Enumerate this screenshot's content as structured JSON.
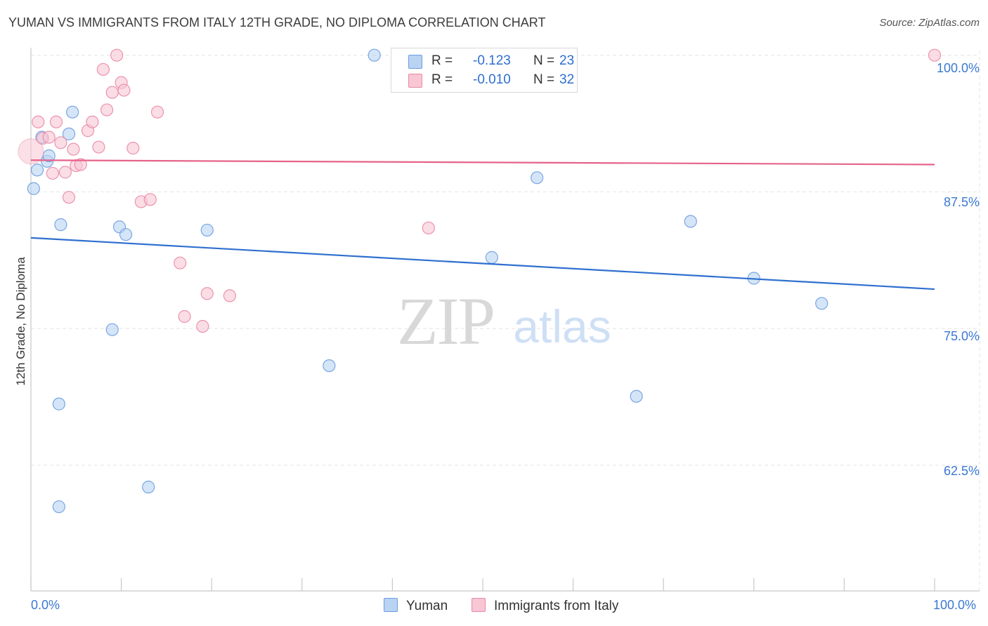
{
  "title": "YUMAN VS IMMIGRANTS FROM ITALY 12TH GRADE, NO DIPLOMA CORRELATION CHART",
  "source": "Source: ZipAtlas.com",
  "watermark": {
    "zip": "ZIP",
    "atlas": "atlas"
  },
  "legend": {
    "r_label": "R =",
    "n_label": "N =",
    "yuman": {
      "r": "-0.123",
      "n": "23"
    },
    "italy": {
      "r": "-0.010",
      "n": "32"
    }
  },
  "colors": {
    "yuman_fill": "#b9d3f3",
    "yuman_stroke": "#6b9de0",
    "yuman_line": "#2f6fcf",
    "italy_fill": "#f8c6d4",
    "italy_stroke": "#e88aa6",
    "italy_line": "#e5638a",
    "tick_text": "#3a78d4",
    "grid": "#e4e4e4"
  },
  "chart_data": {
    "type": "scatter",
    "title": "YUMAN VS IMMIGRANTS FROM ITALY 12TH GRADE, NO DIPLOMA CORRELATION CHART",
    "xlabel": "",
    "ylabel": "12th Grade, No Diploma",
    "x_tick_labels": [
      "0.0%",
      "100.0%"
    ],
    "y_tick_labels": [
      "100.0%",
      "87.5%",
      "75.0%",
      "62.5%"
    ],
    "y_ticks": [
      100.0,
      87.5,
      75.0,
      62.5
    ],
    "xlim": [
      0,
      100
    ],
    "ylim": [
      51,
      101.2
    ],
    "grid": true,
    "legend_position": "bottom",
    "series": [
      {
        "name": "Yuman",
        "points": [
          [
            0.3,
            87.8
          ],
          [
            0.7,
            89.5
          ],
          [
            1.2,
            92.5
          ],
          [
            1.8,
            90.3
          ],
          [
            2.0,
            90.8
          ],
          [
            3.1,
            58.7
          ],
          [
            3.1,
            68.1
          ],
          [
            3.3,
            84.5
          ],
          [
            4.2,
            92.8
          ],
          [
            4.6,
            94.8
          ],
          [
            9.0,
            74.9
          ],
          [
            9.8,
            84.3
          ],
          [
            10.5,
            83.6
          ],
          [
            13.0,
            60.5
          ],
          [
            19.5,
            84.0
          ],
          [
            33.0,
            71.6
          ],
          [
            38.0,
            100.0
          ],
          [
            51.0,
            81.5
          ],
          [
            56.0,
            88.8
          ],
          [
            67.0,
            68.8
          ],
          [
            73.0,
            84.8
          ],
          [
            80.0,
            79.6
          ],
          [
            87.5,
            77.3
          ]
        ],
        "trend": {
          "x": [
            0,
            100
          ],
          "y": [
            83.3,
            78.6
          ]
        }
      },
      {
        "name": "Immigrants from Italy",
        "points": [
          [
            0.0,
            91.2
          ],
          [
            0.8,
            93.9
          ],
          [
            1.3,
            92.4
          ],
          [
            2.0,
            92.5
          ],
          [
            2.4,
            89.2
          ],
          [
            2.8,
            93.9
          ],
          [
            3.3,
            92.0
          ],
          [
            3.8,
            89.3
          ],
          [
            4.2,
            87.0
          ],
          [
            4.7,
            91.4
          ],
          [
            5.0,
            89.9
          ],
          [
            5.5,
            90.0
          ],
          [
            6.3,
            93.1
          ],
          [
            6.8,
            93.9
          ],
          [
            7.5,
            91.6
          ],
          [
            8.0,
            98.7
          ],
          [
            8.4,
            95.0
          ],
          [
            9.0,
            96.6
          ],
          [
            9.5,
            100.0
          ],
          [
            10.0,
            97.5
          ],
          [
            10.3,
            96.8
          ],
          [
            11.3,
            91.5
          ],
          [
            12.2,
            86.6
          ],
          [
            13.2,
            86.8
          ],
          [
            14.0,
            94.8
          ],
          [
            16.5,
            81.0
          ],
          [
            17.0,
            76.1
          ],
          [
            19.0,
            75.2
          ],
          [
            19.5,
            78.2
          ],
          [
            22.0,
            78.0
          ],
          [
            44.0,
            84.2
          ],
          [
            100.0,
            100.0
          ]
        ],
        "trend": {
          "x": [
            0,
            100
          ],
          "y": [
            90.4,
            90.0
          ]
        }
      }
    ]
  },
  "bottom_legend": {
    "yuman": "Yuman",
    "italy": "Immigrants from Italy"
  }
}
